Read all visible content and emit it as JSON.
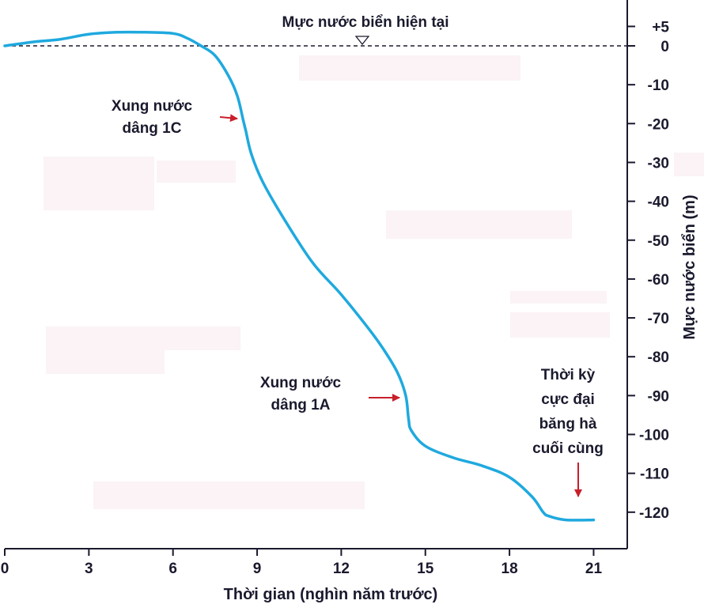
{
  "chart_data": {
    "type": "line",
    "xlabel": "Thời gian (nghìn năm trước)",
    "ylabel": "Mực nước biển (m)",
    "xlim": [
      0,
      22
    ],
    "ylim": [
      -128,
      5
    ],
    "x_ticks": [
      "0",
      "3",
      "6",
      "9",
      "12",
      "15",
      "18",
      "21"
    ],
    "y_ticks": [
      "+5",
      "0",
      "-10",
      "-20",
      "-30",
      "-40",
      "-50",
      "-60",
      "-70",
      "-80",
      "-90",
      "-100",
      "-110",
      "-120"
    ],
    "series": [
      {
        "color": "#1fa9de",
        "x": [
          0,
          1,
          2,
          3,
          4,
          5,
          6,
          6.5,
          7,
          7.5,
          8,
          8.3,
          8.5,
          8.6,
          8.8,
          9.2,
          10,
          11,
          12,
          13,
          13.5,
          14,
          14.3,
          14.4,
          14.5,
          15,
          16,
          17,
          18,
          18.8,
          19.2,
          19.4,
          20,
          21
        ],
        "y": [
          0,
          1,
          1.7,
          3,
          3.5,
          3.5,
          3.2,
          2,
          0,
          -2.5,
          -8,
          -13,
          -19,
          -22,
          -28,
          -35,
          -45,
          -56,
          -64,
          -73,
          -78,
          -84,
          -90,
          -96,
          -99,
          -103,
          -106,
          -108,
          -111,
          -116,
          -120,
          -121,
          -122,
          -122
        ]
      }
    ],
    "reference_line": {
      "y": 0,
      "label": "Mực nước biển hiện tại",
      "style": "dashed"
    },
    "annotations": [
      {
        "lines": [
          "Xung nước",
          "dâng 1C"
        ],
        "x": 8.5,
        "y": -19
      },
      {
        "lines": [
          "Xung nước",
          "dâng 1A"
        ],
        "x": 14.3,
        "y": -90
      },
      {
        "lines": [
          "Thời kỳ",
          "cực đại",
          "băng hà",
          "cuối cùng"
        ],
        "x": 20.5,
        "y": -117
      }
    ]
  }
}
